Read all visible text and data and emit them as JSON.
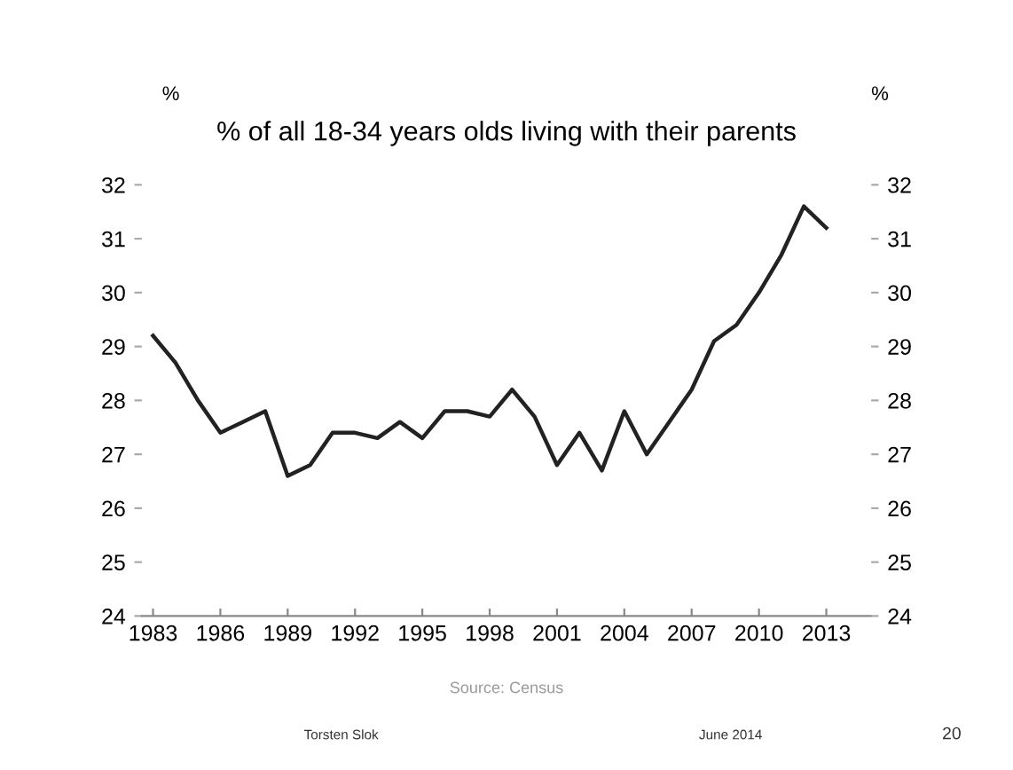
{
  "chart_data": {
    "type": "line",
    "title": "% of all 18-34 years olds living with their parents",
    "ylabel": "%",
    "y2label": "%",
    "x": [
      1983,
      1984,
      1985,
      1986,
      1987,
      1988,
      1989,
      1990,
      1991,
      1992,
      1993,
      1994,
      1995,
      1996,
      1997,
      1998,
      1999,
      2000,
      2001,
      2002,
      2003,
      2004,
      2005,
      2006,
      2007,
      2008,
      2009,
      2010,
      2011,
      2012,
      2013
    ],
    "series": [
      {
        "color": "#222222",
        "values": [
          29.2,
          28.7,
          28.0,
          27.4,
          27.6,
          27.8,
          26.6,
          26.8,
          27.4,
          27.4,
          27.3,
          27.6,
          27.3,
          27.8,
          27.8,
          27.7,
          28.2,
          27.7,
          26.8,
          27.4,
          26.7,
          27.8,
          27.0,
          27.6,
          28.2,
          29.1,
          29.4,
          30.0,
          30.7,
          31.6,
          31.2
        ]
      }
    ],
    "xlim": [
      1982.5,
      2015
    ],
    "xticks": [
      1983,
      1986,
      1989,
      1992,
      1995,
      1998,
      2001,
      2004,
      2007,
      2010,
      2013
    ],
    "ylim": [
      24,
      32
    ],
    "yticks": [
      24,
      25,
      26,
      27,
      28,
      29,
      30,
      31,
      32
    ],
    "y2lim": [
      24,
      32
    ],
    "y2ticks": [
      24,
      25,
      26,
      27,
      28,
      29,
      30,
      31,
      32
    ],
    "grid": false,
    "legend": false,
    "marker": "none",
    "line_style": "solid",
    "annotations": [
      "Source: Census",
      "Torsten Slok",
      "June 2014",
      "20"
    ]
  }
}
